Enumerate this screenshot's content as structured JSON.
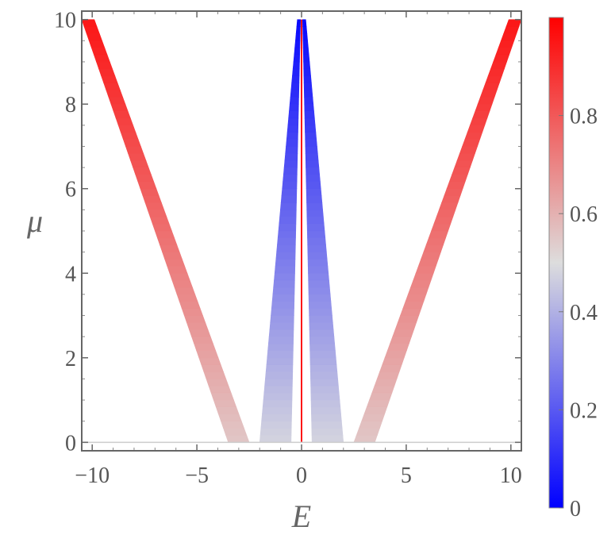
{
  "chart_data": {
    "type": "heatmap",
    "title": "",
    "xlabel": "E",
    "ylabel": "μ",
    "xlim": [
      -10.5,
      10.5
    ],
    "ylim": [
      -0.2,
      10.2
    ],
    "x_ticks": [
      {
        "value": -10,
        "label": "−10"
      },
      {
        "value": -5,
        "label": "−5"
      },
      {
        "value": 0,
        "label": "0"
      },
      {
        "value": 5,
        "label": "5"
      },
      {
        "value": 10,
        "label": "10"
      }
    ],
    "y_ticks": [
      {
        "value": 0,
        "label": "0"
      },
      {
        "value": 2,
        "label": "2"
      },
      {
        "value": 4,
        "label": "4"
      },
      {
        "value": 6,
        "label": "6"
      },
      {
        "value": 8,
        "label": "8"
      },
      {
        "value": 10,
        "label": "10"
      }
    ],
    "colorbar": {
      "range": [
        0,
        1
      ],
      "ticks": [
        {
          "value": 0,
          "label": "0"
        },
        {
          "value": 0.2,
          "label": "0.2"
        },
        {
          "value": 0.4,
          "label": "0.4"
        },
        {
          "value": 0.6,
          "label": "0.6"
        },
        {
          "value": 0.8,
          "label": "0.8"
        }
      ],
      "colors": {
        "low": "#0000ff",
        "mid": "#dddddd",
        "high": "#ff0000"
      }
    },
    "bands": [
      {
        "name": "outer-left",
        "edge_at_0": [
          -3.5,
          -2.5
        ],
        "edge_at_10": [
          -10.5,
          -9.9
        ],
        "value_at_0": 0.55,
        "value_at_10": 0.95
      },
      {
        "name": "outer-right",
        "edge_at_0": [
          2.5,
          3.5
        ],
        "edge_at_10": [
          9.9,
          10.5
        ],
        "value_at_0": 0.55,
        "value_at_10": 0.95
      },
      {
        "name": "inner-left",
        "edge_at_0": [
          -2.0,
          -0.5
        ],
        "edge_at_10": [
          -0.2,
          -0.05
        ],
        "value_at_0": 0.48,
        "value_at_10": 0.02
      },
      {
        "name": "inner-right",
        "edge_at_0": [
          0.5,
          2.0
        ],
        "edge_at_10": [
          0.05,
          0.2
        ],
        "value_at_0": 0.48,
        "value_at_10": 0.02
      }
    ],
    "center_line": {
      "x": 0,
      "value": 0.95
    }
  }
}
